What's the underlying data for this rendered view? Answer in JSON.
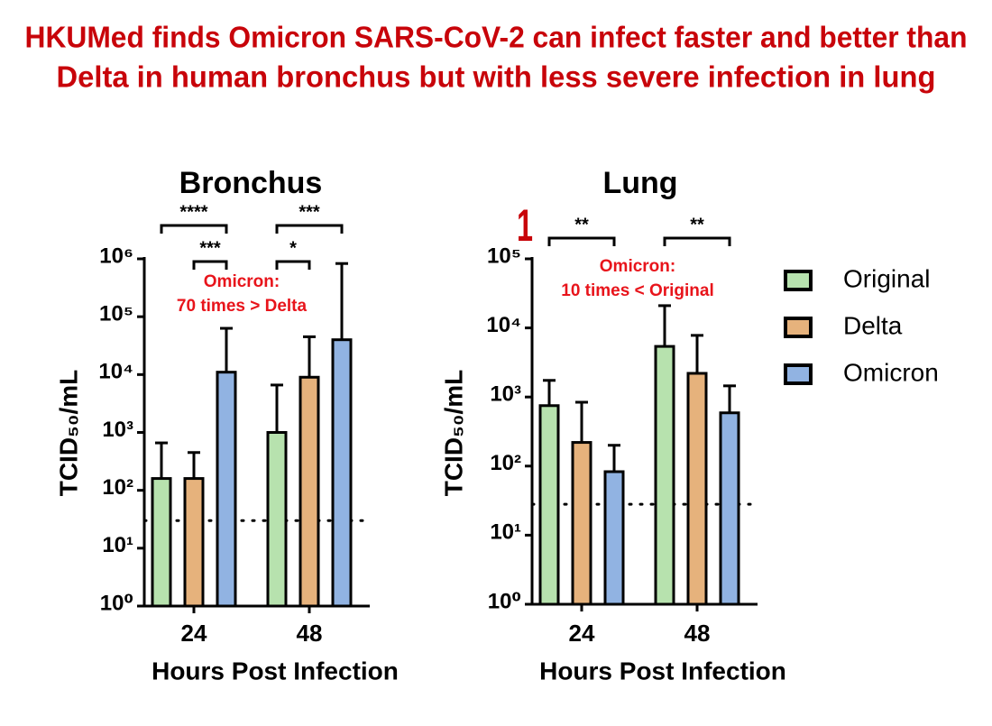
{
  "headline": [
    "HKUMed finds Omicron SARS-CoV-2 can infect faster and better than",
    "Delta in human bronchus but with less severe infection in lung"
  ],
  "badge": "1",
  "chart_data": [
    {
      "type": "bar",
      "title": "Bronchus",
      "x_label": "Hours Post Infection",
      "y_label": "TCID₅₀/mL",
      "log_scale": true,
      "ylim": [
        1,
        1000000
      ],
      "yticks": [
        {
          "value": 1,
          "label": "10⁰"
        },
        {
          "value": 10,
          "label": "10¹"
        },
        {
          "value": 100,
          "label": "10²"
        },
        {
          "value": 1000,
          "label": "10³"
        },
        {
          "value": 10000,
          "label": "10⁴"
        },
        {
          "value": 100000,
          "label": "10⁵"
        },
        {
          "value": 1000000,
          "label": "10⁶"
        }
      ],
      "categories": [
        "24",
        "48"
      ],
      "series": [
        {
          "name": "Original",
          "color": "#b7e2ae",
          "values": [
            160,
            1000
          ],
          "errors": [
            500,
            5600
          ]
        },
        {
          "name": "Delta",
          "color": "#e6b27c",
          "values": [
            160,
            9000
          ],
          "errors": [
            290,
            36000
          ]
        },
        {
          "name": "Omicron",
          "color": "#91b3e2",
          "values": [
            11000,
            40000
          ],
          "errors": [
            52000,
            790000
          ]
        }
      ],
      "reference_line": 30,
      "significance": [
        "****",
        "***",
        "***",
        "*"
      ],
      "annotation": [
        "Omicron:",
        "70 times > Delta"
      ]
    },
    {
      "type": "bar",
      "title": "Lung",
      "x_label": "Hours Post Infection",
      "y_label": "TCID₅₀/mL",
      "log_scale": true,
      "ylim": [
        1,
        100000
      ],
      "yticks": [
        {
          "value": 1,
          "label": "10⁰"
        },
        {
          "value": 10,
          "label": "10¹"
        },
        {
          "value": 100,
          "label": "10²"
        },
        {
          "value": 1000,
          "label": "10³"
        },
        {
          "value": 10000,
          "label": "10⁴"
        },
        {
          "value": 100000,
          "label": "10⁵"
        }
      ],
      "categories": [
        "24",
        "48"
      ],
      "series": [
        {
          "color": "#b7e2ae",
          "values": [
            750,
            5400
          ],
          "errors": [
            990,
            15600
          ]
        },
        {
          "color": "#e6b27c",
          "values": [
            220,
            2200
          ],
          "errors": [
            620,
            5600
          ]
        },
        {
          "color": "#91b3e2",
          "values": [
            83,
            590
          ],
          "errors": [
            117,
            860
          ]
        }
      ],
      "reference_line": 28,
      "significance": [
        "**",
        "**"
      ],
      "annotation": [
        "Omicron:",
        "10 times < Original"
      ]
    }
  ]
}
